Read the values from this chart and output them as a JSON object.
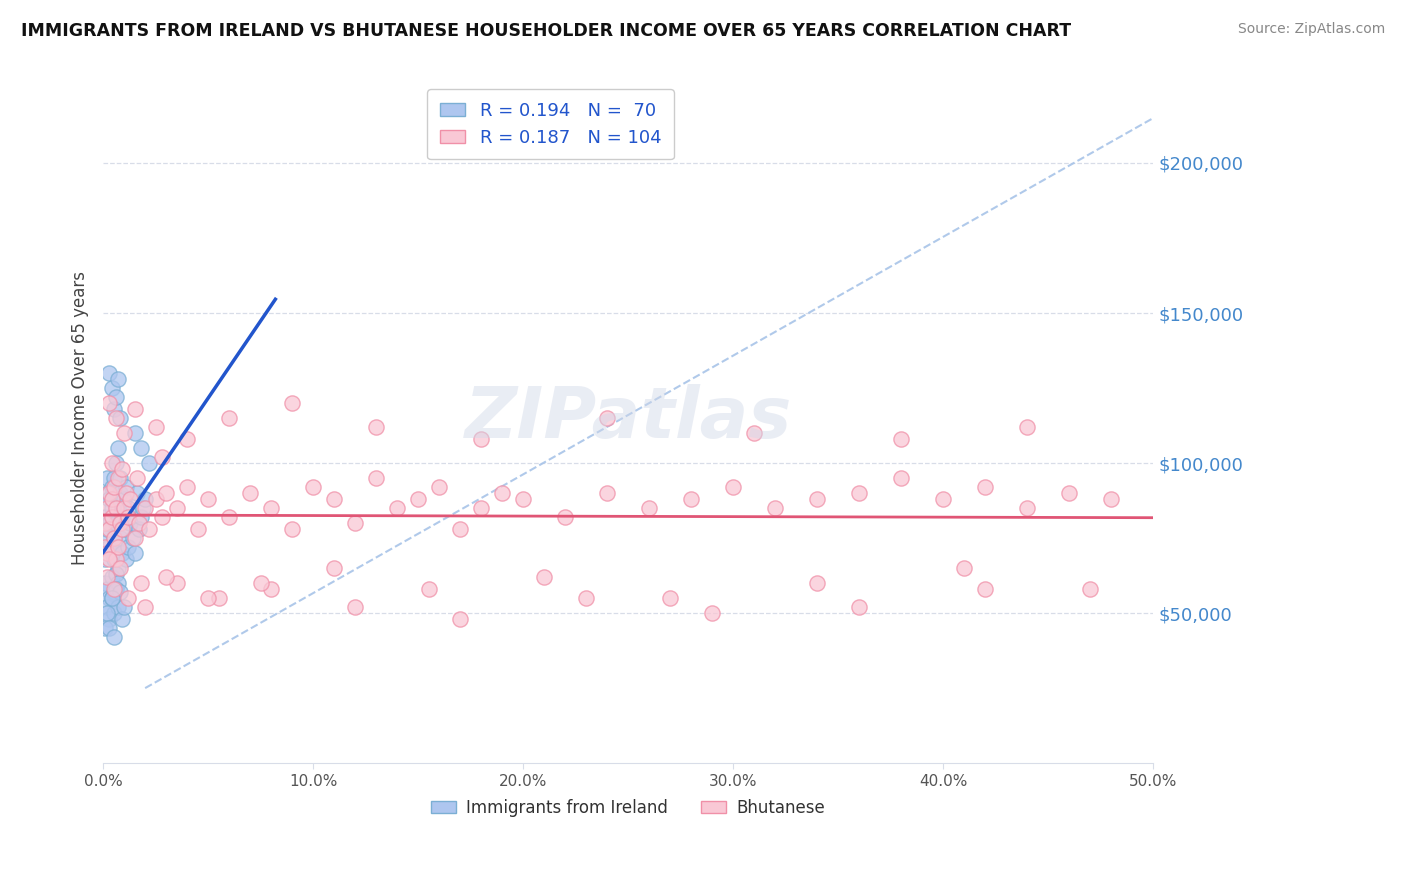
{
  "title": "IMMIGRANTS FROM IRELAND VS BHUTANESE HOUSEHOLDER INCOME OVER 65 YEARS CORRELATION CHART",
  "source": "Source: ZipAtlas.com",
  "ylabel": "Householder Income Over 65 years",
  "yaxis_labels": [
    "$50,000",
    "$100,000",
    "$150,000",
    "$200,000"
  ],
  "yaxis_values": [
    50000,
    100000,
    150000,
    200000
  ],
  "ylim": [
    0,
    230000
  ],
  "xlim": [
    0.0,
    0.5
  ],
  "ireland_scatter_color": "#aec6ef",
  "ireland_edge_color": "#7bafd4",
  "bhutan_scatter_color": "#f9c8d5",
  "bhutan_edge_color": "#f090a8",
  "ireland_line_color": "#2255cc",
  "bhutan_line_color": "#e05575",
  "diagonal_line_color": "#a8c4e8",
  "legend_box_color": "#aec6ef",
  "legend_box_color2": "#f9c8d5",
  "grid_color": "#d8dde8",
  "title_color": "#111111",
  "source_color": "#888888",
  "ylabel_color": "#444444",
  "tick_color": "#555555",
  "yaxis_tick_color": "#4488cc",
  "ireland_x": [
    0.001,
    0.001,
    0.001,
    0.002,
    0.002,
    0.002,
    0.003,
    0.003,
    0.003,
    0.004,
    0.004,
    0.004,
    0.005,
    0.005,
    0.005,
    0.006,
    0.006,
    0.006,
    0.007,
    0.007,
    0.007,
    0.008,
    0.008,
    0.008,
    0.009,
    0.009,
    0.01,
    0.01,
    0.011,
    0.011,
    0.012,
    0.012,
    0.013,
    0.014,
    0.015,
    0.016,
    0.017,
    0.018,
    0.019,
    0.02,
    0.001,
    0.002,
    0.003,
    0.004,
    0.005,
    0.006,
    0.007,
    0.002,
    0.003,
    0.004,
    0.005,
    0.006,
    0.007,
    0.008,
    0.009,
    0.01,
    0.001,
    0.002,
    0.003,
    0.004,
    0.005,
    0.003,
    0.004,
    0.005,
    0.006,
    0.007,
    0.008,
    0.022,
    0.015,
    0.018
  ],
  "ireland_y": [
    75000,
    82000,
    68000,
    90000,
    95000,
    78000,
    88000,
    72000,
    80000,
    85000,
    92000,
    70000,
    95000,
    75000,
    68000,
    100000,
    72000,
    80000,
    105000,
    85000,
    65000,
    90000,
    75000,
    95000,
    82000,
    70000,
    88000,
    78000,
    92000,
    68000,
    85000,
    72000,
    80000,
    75000,
    70000,
    90000,
    78000,
    82000,
    85000,
    88000,
    60000,
    58000,
    55000,
    62000,
    57000,
    63000,
    60000,
    52000,
    48000,
    55000,
    50000,
    58000,
    52000,
    57000,
    48000,
    52000,
    45000,
    50000,
    45000,
    55000,
    42000,
    130000,
    125000,
    118000,
    122000,
    128000,
    115000,
    100000,
    110000,
    105000
  ],
  "bhutan_x": [
    0.001,
    0.001,
    0.002,
    0.002,
    0.003,
    0.003,
    0.004,
    0.004,
    0.005,
    0.005,
    0.006,
    0.006,
    0.007,
    0.007,
    0.008,
    0.009,
    0.01,
    0.011,
    0.012,
    0.013,
    0.015,
    0.017,
    0.02,
    0.022,
    0.025,
    0.028,
    0.03,
    0.035,
    0.04,
    0.045,
    0.05,
    0.06,
    0.07,
    0.08,
    0.09,
    0.1,
    0.11,
    0.12,
    0.13,
    0.14,
    0.15,
    0.16,
    0.17,
    0.18,
    0.19,
    0.2,
    0.22,
    0.24,
    0.26,
    0.28,
    0.3,
    0.32,
    0.34,
    0.36,
    0.38,
    0.4,
    0.42,
    0.44,
    0.46,
    0.48,
    0.003,
    0.006,
    0.01,
    0.015,
    0.025,
    0.04,
    0.06,
    0.09,
    0.13,
    0.18,
    0.24,
    0.31,
    0.38,
    0.44,
    0.002,
    0.005,
    0.012,
    0.02,
    0.035,
    0.055,
    0.08,
    0.12,
    0.17,
    0.23,
    0.29,
    0.36,
    0.42,
    0.003,
    0.008,
    0.018,
    0.03,
    0.05,
    0.075,
    0.11,
    0.155,
    0.21,
    0.27,
    0.34,
    0.41,
    0.47,
    0.004,
    0.009,
    0.016,
    0.028
  ],
  "bhutan_y": [
    80000,
    72000,
    85000,
    70000,
    90000,
    78000,
    82000,
    88000,
    75000,
    92000,
    68000,
    85000,
    95000,
    72000,
    80000,
    78000,
    85000,
    90000,
    82000,
    88000,
    75000,
    80000,
    85000,
    78000,
    88000,
    82000,
    90000,
    85000,
    92000,
    78000,
    88000,
    82000,
    90000,
    85000,
    78000,
    92000,
    88000,
    80000,
    95000,
    85000,
    88000,
    92000,
    78000,
    85000,
    90000,
    88000,
    82000,
    90000,
    85000,
    88000,
    92000,
    85000,
    88000,
    90000,
    95000,
    88000,
    92000,
    85000,
    90000,
    88000,
    120000,
    115000,
    110000,
    118000,
    112000,
    108000,
    115000,
    120000,
    112000,
    108000,
    115000,
    110000,
    108000,
    112000,
    62000,
    58000,
    55000,
    52000,
    60000,
    55000,
    58000,
    52000,
    48000,
    55000,
    50000,
    52000,
    58000,
    68000,
    65000,
    60000,
    62000,
    55000,
    60000,
    65000,
    58000,
    62000,
    55000,
    60000,
    65000,
    58000,
    100000,
    98000,
    95000,
    102000
  ]
}
